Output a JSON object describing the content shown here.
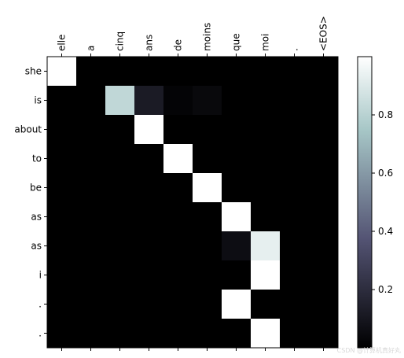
{
  "chart_data": {
    "type": "heatmap",
    "x": [
      "elle",
      "a",
      "cinq",
      "ans",
      "de",
      "moins",
      "que",
      "moi",
      ".",
      "<EOS>"
    ],
    "y": [
      "she",
      "is",
      "about",
      "to",
      "be",
      "as",
      "as",
      "i",
      ".",
      "."
    ],
    "values": [
      [
        1.0,
        0.0,
        0.0,
        0.0,
        0.0,
        0.0,
        0.0,
        0.0,
        0.0,
        0.0
      ],
      [
        0.0,
        0.0,
        0.82,
        0.12,
        0.02,
        0.04,
        0.0,
        0.0,
        0.0,
        0.0
      ],
      [
        0.0,
        0.0,
        0.0,
        1.0,
        0.0,
        0.0,
        0.0,
        0.0,
        0.0,
        0.0
      ],
      [
        0.0,
        0.0,
        0.0,
        0.0,
        1.0,
        0.0,
        0.0,
        0.0,
        0.0,
        0.0
      ],
      [
        0.0,
        0.0,
        0.0,
        0.0,
        0.0,
        1.0,
        0.0,
        0.0,
        0.0,
        0.0
      ],
      [
        0.0,
        0.0,
        0.0,
        0.0,
        0.0,
        0.0,
        1.0,
        0.0,
        0.0,
        0.0
      ],
      [
        0.0,
        0.0,
        0.0,
        0.0,
        0.0,
        0.0,
        0.06,
        0.93,
        0.0,
        0.0
      ],
      [
        0.0,
        0.0,
        0.0,
        0.0,
        0.0,
        0.0,
        0.0,
        1.0,
        0.0,
        0.0
      ],
      [
        0.0,
        0.0,
        0.0,
        0.0,
        0.0,
        0.0,
        1.0,
        0.0,
        0.0,
        0.0
      ],
      [
        0.0,
        0.0,
        0.0,
        0.0,
        0.0,
        0.0,
        0.0,
        1.0,
        0.0,
        0.0
      ]
    ],
    "colormap": "bone",
    "colorbar": {
      "range": [
        0.0,
        1.0
      ],
      "ticks": [
        0.2,
        0.4,
        0.6,
        0.8
      ],
      "tick_labels": [
        "0.2",
        "0.4",
        "0.6",
        "0.8"
      ]
    },
    "x_tick_position": "top",
    "x_tick_rotation": "vertical",
    "title": "",
    "xlabel": "",
    "ylabel": ""
  },
  "watermark": "CSDN @计算机真好丸"
}
